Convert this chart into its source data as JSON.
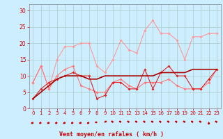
{
  "x": [
    0,
    1,
    2,
    3,
    4,
    5,
    6,
    7,
    8,
    9,
    10,
    11,
    12,
    13,
    14,
    15,
    16,
    17,
    18,
    19,
    20,
    21,
    22,
    23
  ],
  "line1": [
    8,
    13,
    6,
    15,
    19,
    19,
    20,
    20,
    13,
    11,
    15,
    21,
    18,
    17,
    24,
    27,
    23,
    23,
    21,
    15,
    22,
    22,
    23,
    23
  ],
  "line2": [
    3,
    6,
    8,
    9,
    10,
    11,
    10,
    10,
    3,
    4,
    8,
    8,
    6,
    6,
    12,
    6,
    11,
    13,
    10,
    10,
    6,
    6,
    9,
    12
  ],
  "line3": [
    3,
    5,
    7,
    9,
    10,
    10,
    10,
    9,
    9,
    10,
    10,
    10,
    10,
    10,
    10,
    10,
    11,
    11,
    11,
    11,
    12,
    12,
    12,
    12
  ],
  "line4": [
    8,
    13,
    6,
    10,
    12,
    13,
    7,
    6,
    5,
    5,
    8,
    9,
    7,
    6,
    8,
    8,
    8,
    9,
    7,
    6,
    6,
    6,
    8,
    12
  ],
  "wind_dirs": [
    225,
    225,
    225,
    225,
    225,
    225,
    225,
    225,
    270,
    45,
    315,
    315,
    315,
    315,
    315,
    315,
    315,
    315,
    315,
    315,
    315,
    315,
    180,
    315
  ],
  "background_color": "#cceeff",
  "grid_color": "#aacccc",
  "line1_color": "#ff9999",
  "line2_color": "#dd2222",
  "line3_color": "#aa0000",
  "line4_color": "#ff7777",
  "tick_color": "#cc0000",
  "xlabel": "Vent moyen/en rafales ( km/h )",
  "ylim": [
    0,
    32
  ],
  "xlim": [
    -0.5,
    23.5
  ],
  "yticks": [
    0,
    5,
    10,
    15,
    20,
    25,
    30
  ],
  "xticks": [
    0,
    1,
    2,
    3,
    4,
    5,
    6,
    7,
    8,
    9,
    10,
    11,
    12,
    13,
    14,
    15,
    16,
    17,
    18,
    19,
    20,
    21,
    22,
    23
  ]
}
